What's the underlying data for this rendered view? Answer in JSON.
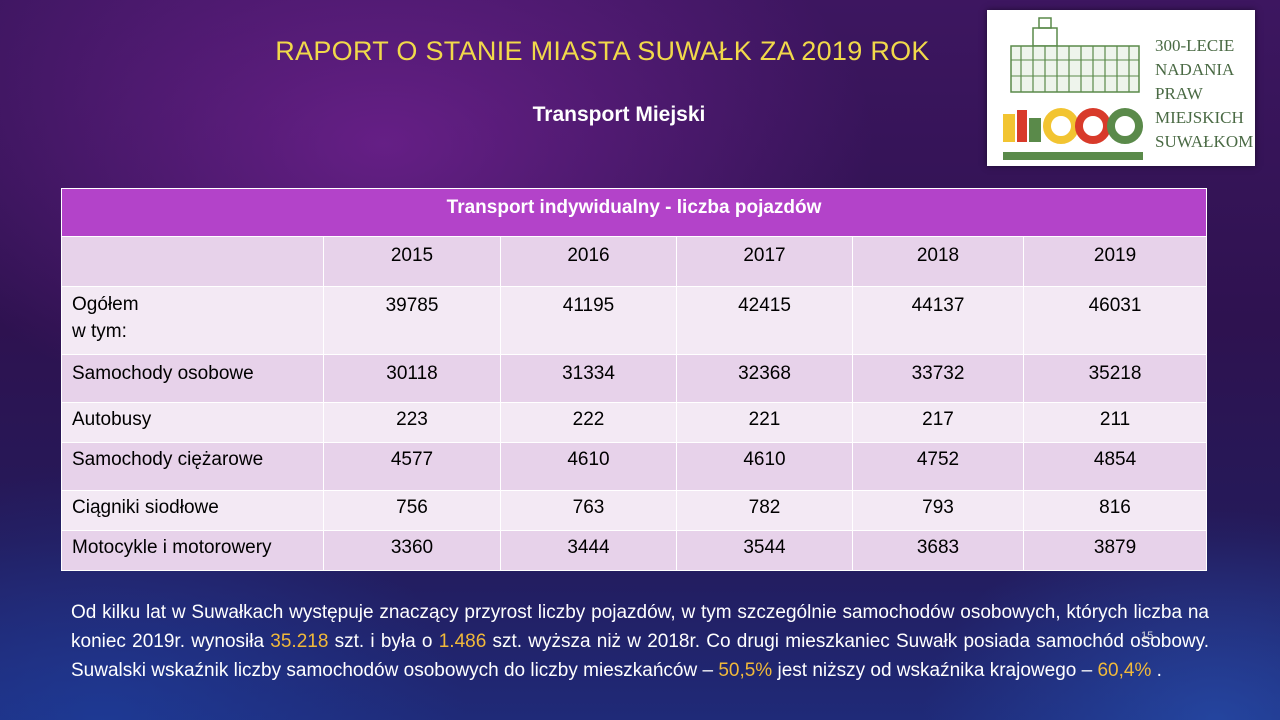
{
  "header": {
    "title": "RAPORT O STANIE MIASTA SUWAŁK ZA 2019 ROK",
    "subtitle": "Transport Miejski"
  },
  "logo": {
    "lines": [
      "300-LECIE",
      "NADANIA",
      "PRAW",
      "MIEJSKICH",
      "SUWAŁKOM"
    ],
    "colors": {
      "green": "#5a8a4a",
      "red": "#d83a2a",
      "yellow": "#f2c431"
    }
  },
  "table": {
    "title": "Transport indywidualny - liczba pojazdów",
    "years": [
      "2015",
      "2016",
      "2017",
      "2018",
      "2019"
    ],
    "rows": [
      {
        "label": "Ogółem",
        "label2": "w tym:",
        "values": [
          "39785",
          "41195",
          "42415",
          "44137",
          "46031"
        ]
      },
      {
        "label": "Samochody osobowe",
        "values": [
          "30118",
          "31334",
          "32368",
          "33732",
          "35218"
        ]
      },
      {
        "label": "Autobusy",
        "values": [
          "223",
          "222",
          "221",
          "217",
          "211"
        ]
      },
      {
        "label": "Samochody ciężarowe",
        "values": [
          "4577",
          "4610",
          "4610",
          "4752",
          "4854"
        ]
      },
      {
        "label": "Ciągniki siodłowe",
        "values": [
          "756",
          "763",
          "782",
          "793",
          "816"
        ]
      },
      {
        "label": "Motocykle i motorowery",
        "values": [
          "3360",
          "3444",
          "3544",
          "3683",
          "3879"
        ]
      }
    ]
  },
  "paragraph": {
    "p1": "Od kilku lat w Suwałkach występuje znaczący przyrost liczby pojazdów, w tym szczególnie samochodów osobowych, których liczba na koniec  2019r. wynosiła ",
    "h1": "35.218",
    "p2": " szt. i była o ",
    "h2": "1.486",
    "p3": " szt. wyższa niż w 2018r.  Co drugi mieszkaniec Suwałk posiada samochód osobowy. Suwalski wskaźnik liczby samochodów osobowych  do liczby mieszkańców – ",
    "h3": "50,5%",
    "p4": " jest niższy od wskaźnika krajowego – ",
    "h4": "60,4%",
    "p5": " ."
  },
  "page_number": "15",
  "colors": {
    "title": "#f1d94a",
    "header_bg": "#b343c9",
    "row_a": "#e7d2ea",
    "row_b": "#f3e9f4",
    "highlight": "#f1b93a"
  }
}
